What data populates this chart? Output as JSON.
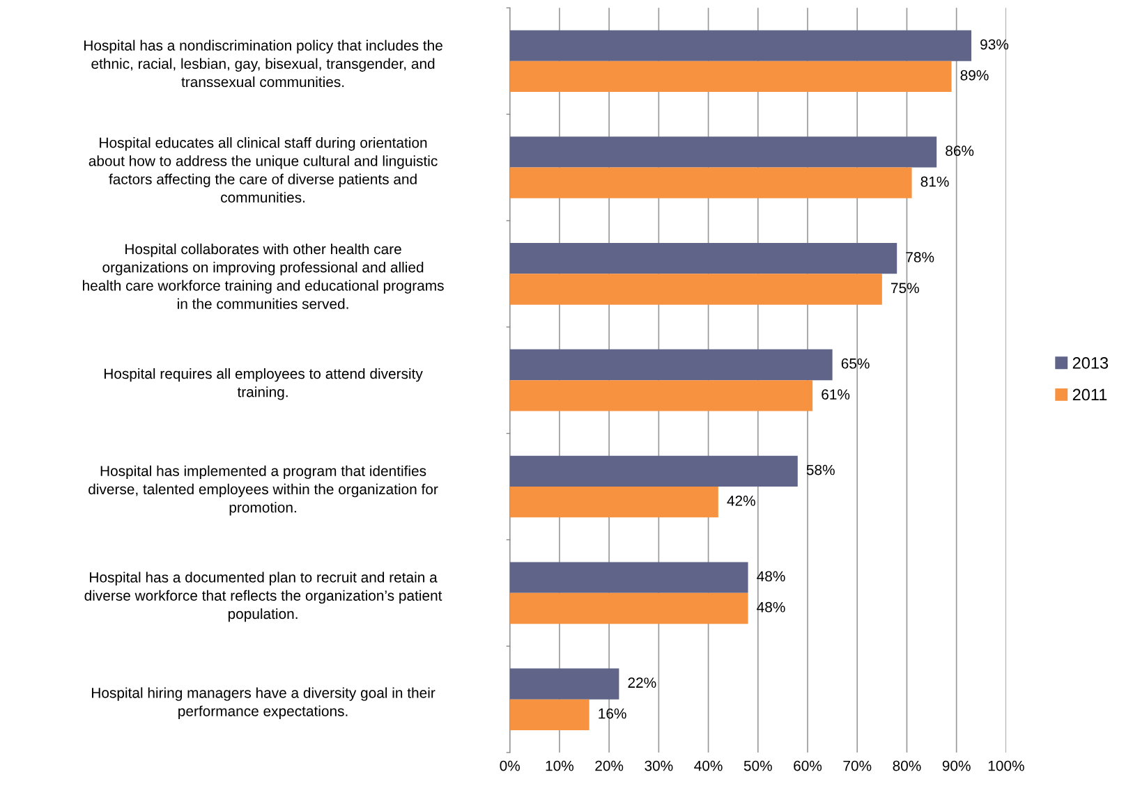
{
  "chart_data": {
    "type": "bar",
    "orientation": "horizontal",
    "categories": [
      "Hospital has a nondiscrimination policy that includes the\nethnic, racial, lesbian, gay, bisexual, transgender, and\ntranssexual communities.",
      "Hospital educates all clinical staff during orientation\nabout how to address the unique cultural and linguistic\nfactors affecting the care of diverse patients and\ncommunities.",
      "Hospital collaborates with other health care\norganizations on improving professional and allied\nhealth care workforce training and educational programs\nin the communities served.",
      "Hospital requires all employees to attend diversity\ntraining.",
      "Hospital has implemented a program that identifies\ndiverse, talented employees within the organization for\npromotion.",
      "Hospital has a documented plan to recruit and retain a\ndiverse workforce that reflects the organization’s patient\npopulation.",
      "Hospital hiring managers have a diversity goal in their\nperformance expectations."
    ],
    "series": [
      {
        "name": "2013",
        "color": "#5f6488",
        "values": [
          93,
          86,
          78,
          65,
          58,
          48,
          22
        ],
        "value_labels": [
          "93%",
          "86%",
          "78%",
          "65%",
          "58%",
          "48%",
          "22%"
        ]
      },
      {
        "name": "2011",
        "color": "#f79240",
        "values": [
          89,
          81,
          75,
          61,
          42,
          48,
          16
        ],
        "value_labels": [
          "89%",
          "81%",
          "75%",
          "61%",
          "42%",
          "48%",
          "16%"
        ]
      }
    ],
    "xlim": [
      0,
      100
    ],
    "xticks": [
      {
        "value": 0,
        "label": "0%"
      },
      {
        "value": 10,
        "label": "10%"
      },
      {
        "value": 20,
        "label": "20%"
      },
      {
        "value": 30,
        "label": "30%"
      },
      {
        "value": 40,
        "label": "40%"
      },
      {
        "value": 50,
        "label": "50%"
      },
      {
        "value": 60,
        "label": "60%"
      },
      {
        "value": 70,
        "label": "70%"
      },
      {
        "value": 80,
        "label": "80%"
      },
      {
        "value": 90,
        "label": "90%"
      },
      {
        "value": 100,
        "label": "100%"
      }
    ],
    "grid": "x",
    "legend": "right"
  }
}
